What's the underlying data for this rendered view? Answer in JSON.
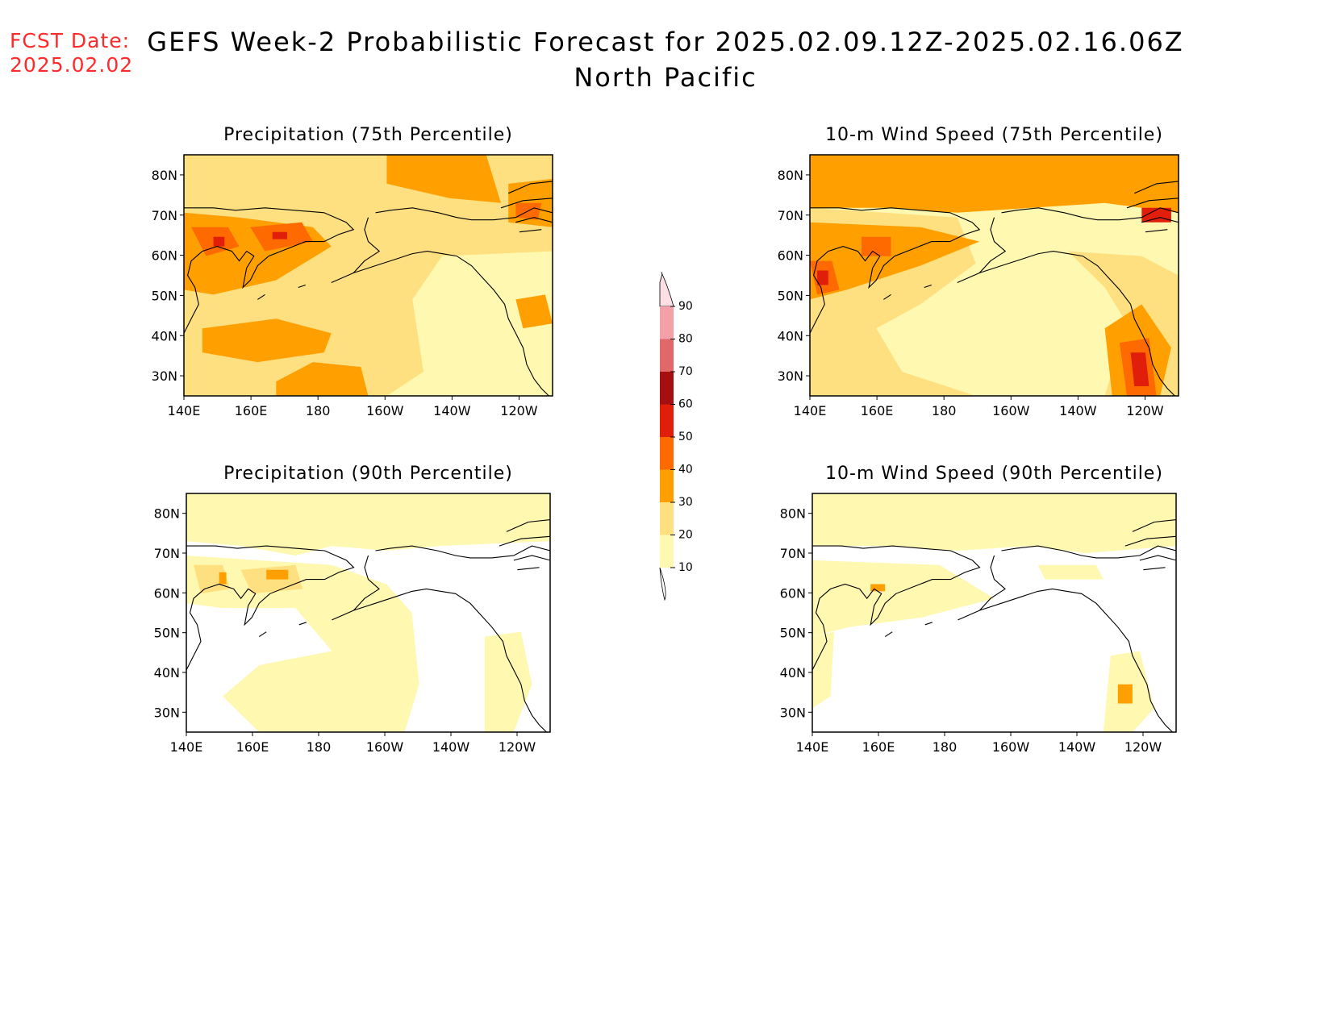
{
  "header": {
    "fcst_label": "FCST Date:",
    "fcst_date": "2025.02.02",
    "title_line1": "GEFS Week-2 Probabilistic Forecast for 2025.02.09.12Z-2025.02.16.06Z",
    "title_line2": "North Pacific"
  },
  "panels": [
    {
      "title": "Precipitation (75th Percentile)"
    },
    {
      "title": "10-m Wind Speed (75th Percentile)"
    },
    {
      "title": "Precipitation (90th Percentile)"
    },
    {
      "title": "10-m Wind Speed (90th Percentile)"
    }
  ],
  "axes": {
    "lat_labels": [
      "80N",
      "70N",
      "60N",
      "50N",
      "40N",
      "30N"
    ],
    "lon_labels": [
      "140E",
      "160E",
      "180",
      "160W",
      "140W",
      "120W"
    ]
  },
  "colorbar": {
    "labels": [
      "90",
      "80",
      "70",
      "60",
      "50",
      "40",
      "30",
      "20",
      "10"
    ],
    "colors": [
      "#fde0e6",
      "#f4a0a8",
      "#e06868",
      "#a50f0f",
      "#e01e0a",
      "#ff6a00",
      "#ffa000",
      "#ffe080",
      "#fff8b0"
    ]
  },
  "map_colors": {
    "c10": "#fff8b0",
    "c20": "#ffe080",
    "c30": "#ffa000",
    "c40": "#ff6a00",
    "c50": "#e01e0a",
    "c60": "#a50f0f"
  }
}
